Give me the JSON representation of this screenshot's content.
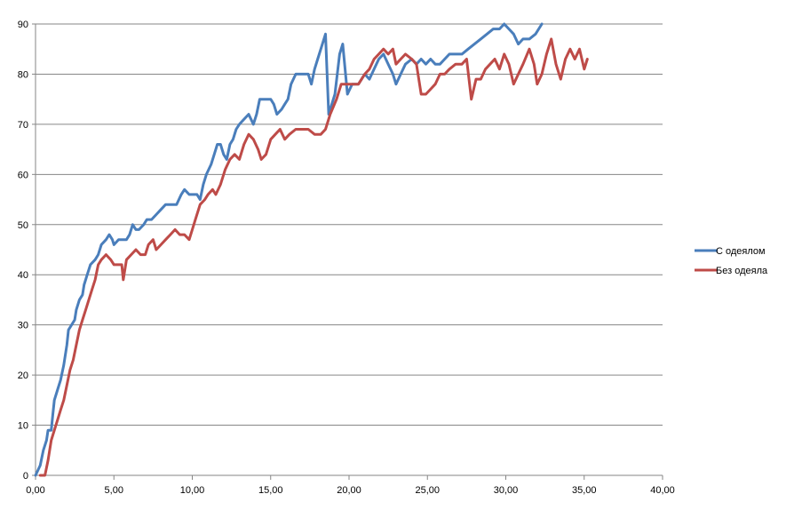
{
  "chart_data": {
    "type": "line",
    "title": "",
    "xlabel": "",
    "ylabel": "",
    "xlim": [
      0,
      40
    ],
    "ylim": [
      0,
      90
    ],
    "x_ticks": [
      "0,00",
      "5,00",
      "10,00",
      "15,00",
      "20,00",
      "25,00",
      "30,00",
      "35,00",
      "40,00"
    ],
    "y_ticks": [
      "0",
      "10",
      "20",
      "30",
      "40",
      "50",
      "60",
      "70",
      "80",
      "90"
    ],
    "grid": "horizontal",
    "legend_position": "right",
    "series": [
      {
        "name": "С одеялом",
        "color": "#4a7ebb",
        "points": [
          [
            0.0,
            0
          ],
          [
            0.3,
            2
          ],
          [
            0.5,
            5
          ],
          [
            0.7,
            7
          ],
          [
            0.8,
            9
          ],
          [
            1.0,
            9
          ],
          [
            1.1,
            12
          ],
          [
            1.2,
            15
          ],
          [
            1.4,
            17
          ],
          [
            1.6,
            19
          ],
          [
            1.8,
            22
          ],
          [
            2.0,
            26
          ],
          [
            2.1,
            29
          ],
          [
            2.3,
            30
          ],
          [
            2.5,
            31
          ],
          [
            2.6,
            33
          ],
          [
            2.8,
            35
          ],
          [
            3.0,
            36
          ],
          [
            3.1,
            38
          ],
          [
            3.3,
            40
          ],
          [
            3.5,
            42
          ],
          [
            3.8,
            43
          ],
          [
            4.0,
            44
          ],
          [
            4.2,
            46
          ],
          [
            4.5,
            47
          ],
          [
            4.7,
            48
          ],
          [
            4.9,
            47
          ],
          [
            5.0,
            46
          ],
          [
            5.3,
            47
          ],
          [
            5.8,
            47
          ],
          [
            6.0,
            48
          ],
          [
            6.2,
            50
          ],
          [
            6.4,
            49
          ],
          [
            6.6,
            49
          ],
          [
            6.9,
            50
          ],
          [
            7.1,
            51
          ],
          [
            7.4,
            51
          ],
          [
            7.7,
            52
          ],
          [
            8.0,
            53
          ],
          [
            8.3,
            54
          ],
          [
            8.7,
            54
          ],
          [
            9.0,
            54
          ],
          [
            9.3,
            56
          ],
          [
            9.5,
            57
          ],
          [
            9.8,
            56
          ],
          [
            10.0,
            56
          ],
          [
            10.3,
            56
          ],
          [
            10.5,
            55
          ],
          [
            10.7,
            58
          ],
          [
            10.9,
            60
          ],
          [
            11.2,
            62
          ],
          [
            11.4,
            64
          ],
          [
            11.6,
            66
          ],
          [
            11.8,
            66
          ],
          [
            12.0,
            64
          ],
          [
            12.2,
            63
          ],
          [
            12.4,
            66
          ],
          [
            12.6,
            67
          ],
          [
            12.8,
            69
          ],
          [
            13.0,
            70
          ],
          [
            13.3,
            71
          ],
          [
            13.6,
            72
          ],
          [
            13.9,
            70
          ],
          [
            14.1,
            72
          ],
          [
            14.3,
            75
          ],
          [
            14.6,
            75
          ],
          [
            15.0,
            75
          ],
          [
            15.2,
            74
          ],
          [
            15.4,
            72
          ],
          [
            15.7,
            73
          ],
          [
            15.9,
            74
          ],
          [
            16.1,
            75
          ],
          [
            16.3,
            78
          ],
          [
            16.6,
            80
          ],
          [
            17.0,
            80
          ],
          [
            17.4,
            80
          ],
          [
            17.6,
            78
          ],
          [
            17.8,
            81
          ],
          [
            18.0,
            83
          ],
          [
            18.3,
            86
          ],
          [
            18.5,
            88
          ],
          [
            18.7,
            72
          ],
          [
            18.9,
            74
          ],
          [
            19.1,
            76
          ],
          [
            19.4,
            84
          ],
          [
            19.6,
            86
          ],
          [
            19.9,
            76
          ],
          [
            20.2,
            78
          ],
          [
            20.6,
            78
          ],
          [
            21.0,
            80
          ],
          [
            21.3,
            79
          ],
          [
            21.6,
            81
          ],
          [
            21.9,
            83
          ],
          [
            22.2,
            84
          ],
          [
            22.5,
            82
          ],
          [
            22.8,
            80
          ],
          [
            23.0,
            78
          ],
          [
            23.3,
            80
          ],
          [
            23.6,
            82
          ],
          [
            24.0,
            83
          ],
          [
            24.3,
            82
          ],
          [
            24.6,
            83
          ],
          [
            24.9,
            82
          ],
          [
            25.2,
            83
          ],
          [
            25.5,
            82
          ],
          [
            25.8,
            82
          ],
          [
            26.1,
            83
          ],
          [
            26.4,
            84
          ],
          [
            26.8,
            84
          ],
          [
            27.2,
            84
          ],
          [
            27.6,
            85
          ],
          [
            28.0,
            86
          ],
          [
            28.4,
            87
          ],
          [
            28.8,
            88
          ],
          [
            29.2,
            89
          ],
          [
            29.6,
            89
          ],
          [
            29.9,
            90
          ],
          [
            30.2,
            89
          ],
          [
            30.5,
            88
          ],
          [
            30.8,
            86
          ],
          [
            31.1,
            87
          ],
          [
            31.5,
            87
          ],
          [
            31.9,
            88
          ],
          [
            32.3,
            90
          ]
        ]
      },
      {
        "name": "Без одеяла",
        "color": "#be4b48",
        "points": [
          [
            0.3,
            0
          ],
          [
            0.6,
            0
          ],
          [
            0.8,
            3
          ],
          [
            1.0,
            7
          ],
          [
            1.2,
            9
          ],
          [
            1.4,
            11
          ],
          [
            1.6,
            13
          ],
          [
            1.8,
            15
          ],
          [
            2.0,
            18
          ],
          [
            2.2,
            21
          ],
          [
            2.4,
            23
          ],
          [
            2.6,
            26
          ],
          [
            2.8,
            29
          ],
          [
            3.0,
            31
          ],
          [
            3.2,
            33
          ],
          [
            3.4,
            35
          ],
          [
            3.6,
            37
          ],
          [
            3.8,
            39
          ],
          [
            4.0,
            42
          ],
          [
            4.2,
            43
          ],
          [
            4.5,
            44
          ],
          [
            4.8,
            43
          ],
          [
            5.0,
            42
          ],
          [
            5.3,
            42
          ],
          [
            5.5,
            42
          ],
          [
            5.6,
            39
          ],
          [
            5.8,
            43
          ],
          [
            6.1,
            44
          ],
          [
            6.4,
            45
          ],
          [
            6.7,
            44
          ],
          [
            7.0,
            44
          ],
          [
            7.2,
            46
          ],
          [
            7.5,
            47
          ],
          [
            7.7,
            45
          ],
          [
            8.0,
            46
          ],
          [
            8.3,
            47
          ],
          [
            8.6,
            48
          ],
          [
            8.9,
            49
          ],
          [
            9.2,
            48
          ],
          [
            9.5,
            48
          ],
          [
            9.8,
            47
          ],
          [
            10.0,
            49
          ],
          [
            10.2,
            51
          ],
          [
            10.5,
            54
          ],
          [
            10.8,
            55
          ],
          [
            11.0,
            56
          ],
          [
            11.3,
            57
          ],
          [
            11.5,
            56
          ],
          [
            11.8,
            58
          ],
          [
            12.1,
            61
          ],
          [
            12.4,
            63
          ],
          [
            12.7,
            64
          ],
          [
            13.0,
            63
          ],
          [
            13.3,
            66
          ],
          [
            13.6,
            68
          ],
          [
            13.9,
            67
          ],
          [
            14.2,
            65
          ],
          [
            14.4,
            63
          ],
          [
            14.7,
            64
          ],
          [
            15.0,
            67
          ],
          [
            15.3,
            68
          ],
          [
            15.6,
            69
          ],
          [
            15.9,
            67
          ],
          [
            16.2,
            68
          ],
          [
            16.6,
            69
          ],
          [
            17.0,
            69
          ],
          [
            17.4,
            69
          ],
          [
            17.8,
            68
          ],
          [
            18.2,
            68
          ],
          [
            18.5,
            69
          ],
          [
            18.8,
            72
          ],
          [
            19.2,
            75
          ],
          [
            19.5,
            78
          ],
          [
            19.8,
            78
          ],
          [
            20.2,
            78
          ],
          [
            20.6,
            78
          ],
          [
            21.0,
            80
          ],
          [
            21.3,
            81
          ],
          [
            21.6,
            83
          ],
          [
            21.9,
            84
          ],
          [
            22.2,
            85
          ],
          [
            22.5,
            84
          ],
          [
            22.8,
            85
          ],
          [
            23.0,
            82
          ],
          [
            23.3,
            83
          ],
          [
            23.6,
            84
          ],
          [
            24.0,
            83
          ],
          [
            24.3,
            82
          ],
          [
            24.6,
            76
          ],
          [
            24.9,
            76
          ],
          [
            25.2,
            77
          ],
          [
            25.5,
            78
          ],
          [
            25.8,
            80
          ],
          [
            26.1,
            80
          ],
          [
            26.4,
            81
          ],
          [
            26.8,
            82
          ],
          [
            27.2,
            82
          ],
          [
            27.5,
            83
          ],
          [
            27.8,
            75
          ],
          [
            28.1,
            79
          ],
          [
            28.4,
            79
          ],
          [
            28.7,
            81
          ],
          [
            29.0,
            82
          ],
          [
            29.3,
            83
          ],
          [
            29.6,
            81
          ],
          [
            29.9,
            84
          ],
          [
            30.2,
            82
          ],
          [
            30.5,
            78
          ],
          [
            30.8,
            80
          ],
          [
            31.1,
            82
          ],
          [
            31.5,
            85
          ],
          [
            31.8,
            82
          ],
          [
            32.0,
            78
          ],
          [
            32.3,
            80
          ],
          [
            32.6,
            84
          ],
          [
            32.9,
            87
          ],
          [
            33.2,
            82
          ],
          [
            33.5,
            79
          ],
          [
            33.8,
            83
          ],
          [
            34.1,
            85
          ],
          [
            34.4,
            83
          ],
          [
            34.7,
            85
          ],
          [
            35.0,
            81
          ],
          [
            35.2,
            83
          ]
        ]
      }
    ]
  }
}
